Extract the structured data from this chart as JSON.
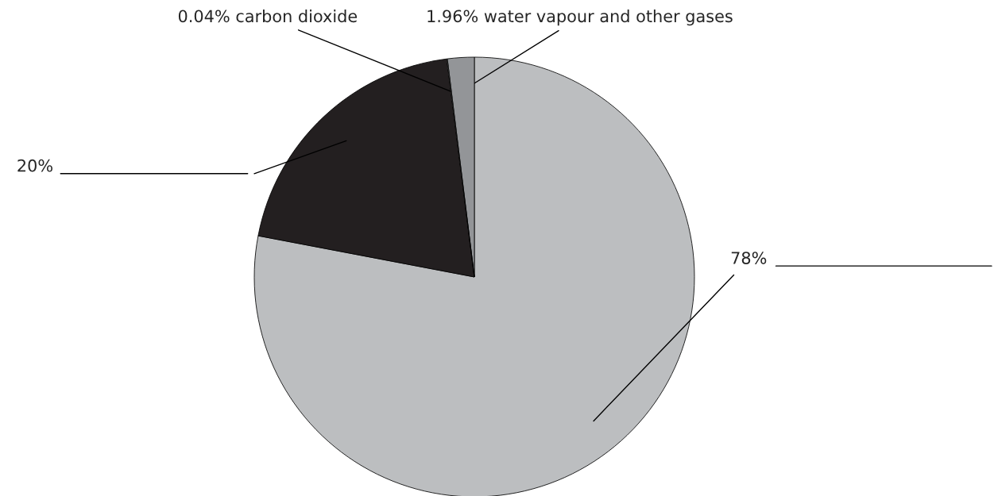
{
  "chart_data": {
    "type": "pie",
    "categories": [
      null,
      null,
      "carbon dioxide",
      "water vapour and other gases"
    ],
    "values": [
      78,
      20,
      0.04,
      1.96
    ],
    "colors": [
      "#bcbec0",
      "#231f20",
      "#ffffff",
      "#939598"
    ],
    "value_labels": [
      "78%",
      "20%",
      "0.04%",
      "1.96%"
    ]
  }
}
